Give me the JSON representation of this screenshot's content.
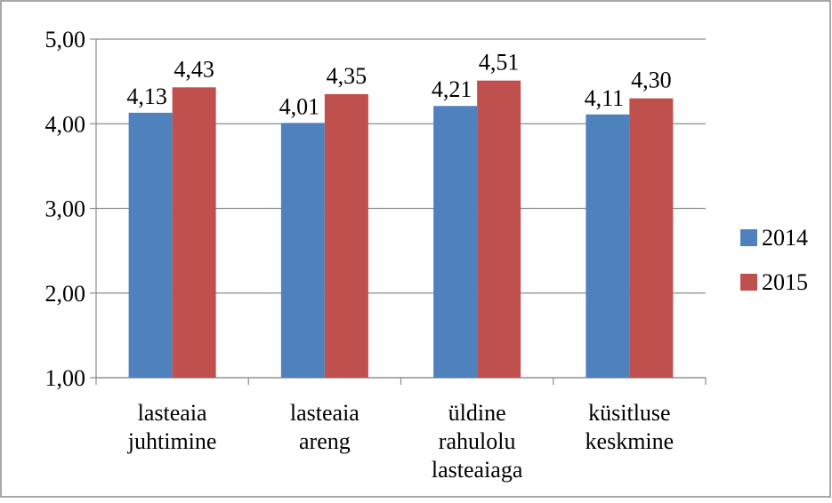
{
  "chart_data": {
    "type": "bar",
    "categories": [
      [
        "lasteaia",
        "juhtimine"
      ],
      [
        "lasteaia",
        "areng"
      ],
      [
        "üldine",
        "rahulolu",
        "lasteaiaga"
      ],
      [
        "küsitluse",
        "keskmine"
      ]
    ],
    "series": [
      {
        "name": "2014",
        "values": [
          4.13,
          4.01,
          4.21,
          4.11
        ],
        "labels": [
          "4,13",
          "4,01",
          "4,21",
          "4,11"
        ],
        "color": "#4F81BD"
      },
      {
        "name": "2015",
        "values": [
          4.43,
          4.35,
          4.51,
          4.3
        ],
        "labels": [
          "4,43",
          "4,35",
          "4,51",
          "4,30"
        ],
        "color": "#C0504D"
      }
    ],
    "ylim": [
      1,
      5
    ],
    "yticks": [
      5,
      4,
      3,
      2,
      1
    ],
    "ytick_labels": [
      "5,00",
      "4,00",
      "3,00",
      "2,00",
      "1,00"
    ],
    "grid": true,
    "legend_position": "right",
    "title": "",
    "xlabel": "",
    "ylabel": ""
  }
}
